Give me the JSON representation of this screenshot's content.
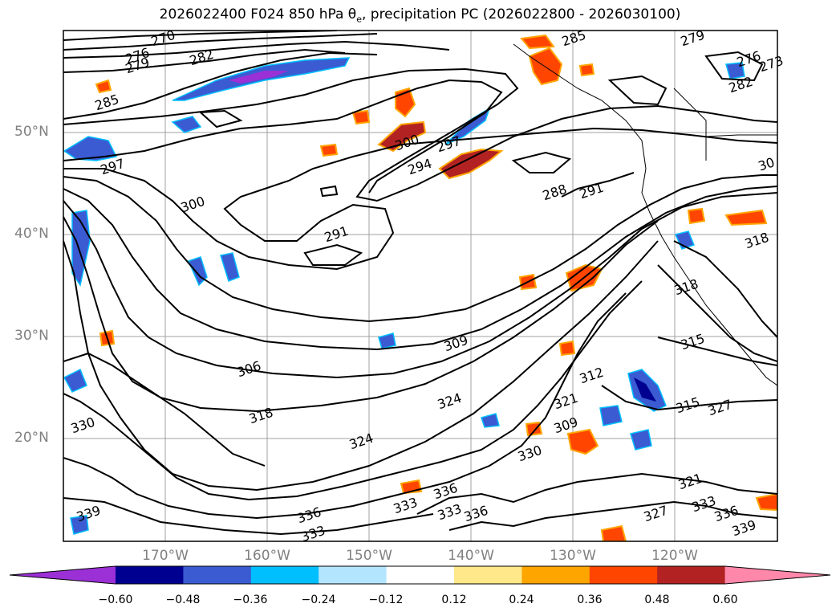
{
  "title": {
    "main": "2026022400 F024 850 hPa θ",
    "subscript": "e",
    "rest": ", precipitation PC (2026022800 - 2026030100)"
  },
  "lat_labels": [
    "50°N",
    "40°N",
    "30°N",
    "20°N"
  ],
  "lon_labels": [
    "170°W",
    "160°W",
    "150°W",
    "140°W",
    "130°W",
    "120°W"
  ],
  "colorbar": {
    "ticks": [
      "−0.60",
      "−0.48",
      "−0.36",
      "−0.24",
      "−0.12",
      "0.12",
      "0.24",
      "0.36",
      "0.48",
      "0.60"
    ],
    "colors": [
      "#9b30d6",
      "#000090",
      "#3a5bd2",
      "#00bfff",
      "#b3e5ff",
      "#ffffff",
      "#ffe88a",
      "#ffa500",
      "#ff4500",
      "#b22222",
      "#ff88aa"
    ]
  },
  "contour_labels": [
    "270",
    "276",
    "279",
    "282",
    "285",
    "285",
    "279",
    "276",
    "273",
    "282",
    "297",
    "300",
    "300",
    "297",
    "294",
    "291",
    "288",
    "291",
    "30",
    "318",
    "318",
    "315",
    "306",
    "309",
    "312",
    "315",
    "318",
    "324",
    "321",
    "327",
    "324",
    "330",
    "333",
    "336",
    "339",
    "336",
    "333",
    "330",
    "333",
    "336",
    "321",
    "327",
    "333",
    "336",
    "339",
    "309"
  ],
  "colors": {
    "contour": "#000000",
    "grid": "#a0a0a0",
    "axis_label": "#808080"
  }
}
